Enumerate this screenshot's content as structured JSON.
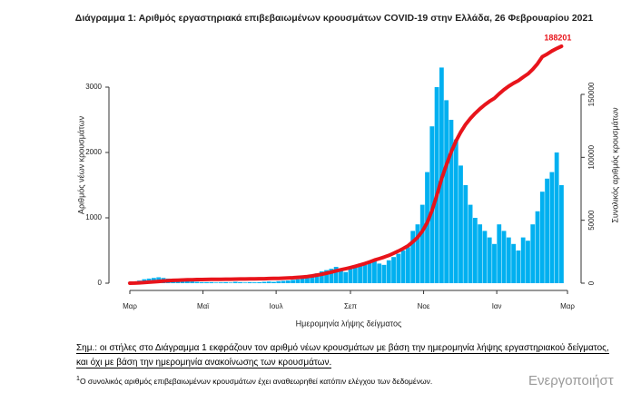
{
  "chart_data": {
    "type": "bar",
    "title": "Διάγραμμα 1: Αριθμός εργαστηριακά επιβεβαιωμένων κρουσμάτων COVID-19 στην Ελλάδα, 26 Φεβρουαρίου 2021",
    "x_label": "Ημερομηνία λήψης δείγματος",
    "y_label": "Αριθμός νέων κρουσμάτων",
    "y2_label": "Συνολικός αριθμός κρουσμάτων",
    "x": [
      0,
      4,
      8,
      12,
      16,
      20,
      24,
      28,
      32,
      36,
      40,
      44,
      48,
      52,
      56,
      60,
      64,
      68,
      72,
      76,
      80,
      84,
      88,
      92,
      96,
      100,
      104,
      108,
      112,
      116,
      120,
      124,
      128,
      132,
      136,
      140,
      144,
      148,
      152,
      156,
      160,
      164,
      168,
      172,
      176,
      180,
      184,
      188,
      192,
      196,
      200,
      204,
      208,
      212,
      216,
      220,
      224,
      228,
      232,
      236,
      240,
      244,
      248,
      252,
      256,
      260,
      264,
      268,
      272,
      276,
      280,
      284,
      288,
      292,
      296,
      300,
      304,
      308,
      312,
      316,
      320,
      324,
      328,
      332,
      336,
      340,
      344,
      348,
      352,
      356,
      360
    ],
    "xlim": [
      -5,
      368
    ],
    "xticks": [
      {
        "value": 0,
        "label": "Μαρ"
      },
      {
        "value": 61,
        "label": "Μαϊ"
      },
      {
        "value": 122,
        "label": "Ιουλ"
      },
      {
        "value": 184,
        "label": "Σεπ"
      },
      {
        "value": 245,
        "label": "Νοε"
      },
      {
        "value": 306,
        "label": "Ιαν"
      },
      {
        "value": 365,
        "label": "Μαρ"
      }
    ],
    "ylim": [
      0,
      3778
    ],
    "yticks": [
      0,
      1000,
      2000,
      3000
    ],
    "y2lim": [
      0,
      196154
    ],
    "y2ticks": [
      0,
      50000,
      100000,
      150000
    ],
    "series": [
      {
        "type": "bar",
        "color": "#00b0f0",
        "values": [
          5,
          20,
          40,
          60,
          70,
          80,
          90,
          80,
          70,
          60,
          50,
          40,
          30,
          25,
          20,
          15,
          15,
          15,
          10,
          12,
          15,
          10,
          20,
          15,
          10,
          15,
          12,
          15,
          20,
          25,
          20,
          30,
          35,
          40,
          50,
          60,
          70,
          90,
          110,
          150,
          180,
          200,
          220,
          250,
          200,
          170,
          220,
          250,
          300,
          280,
          320,
          350,
          300,
          280,
          350,
          400,
          450,
          500,
          550,
          800,
          900,
          1200,
          1700,
          2400,
          3000,
          3300,
          2800,
          2500,
          2200,
          1800,
          1500,
          1200,
          1000,
          900,
          800,
          700,
          600,
          900,
          800,
          700,
          600,
          500,
          700,
          650,
          900,
          1100,
          1400,
          1600,
          1700,
          2000,
          1500
        ]
      },
      {
        "type": "line",
        "axis": "y2",
        "color": "#e8141b",
        "end_label": "188201",
        "values": [
          7,
          90,
          300,
          500,
          800,
          1100,
          1400,
          1700,
          2000,
          2200,
          2400,
          2550,
          2650,
          2750,
          2850,
          2900,
          2950,
          3000,
          3050,
          3100,
          3150,
          3200,
          3250,
          3300,
          3350,
          3400,
          3450,
          3500,
          3550,
          3650,
          3750,
          3850,
          4000,
          4150,
          4350,
          4600,
          4900,
          5300,
          5800,
          6400,
          7100,
          7900,
          8800,
          9800,
          10700,
          11500,
          12400,
          13400,
          14500,
          15600,
          16900,
          18300,
          19500,
          20700,
          22100,
          23700,
          25500,
          27500,
          29700,
          32900,
          36500,
          41300,
          48100,
          57700,
          69700,
          82900,
          94100,
          104100,
          112900,
          120100,
          126100,
          130900,
          134900,
          138500,
          141700,
          144500,
          146900,
          150500,
          153700,
          156500,
          158900,
          160900,
          163700,
          166300,
          169900,
          174300,
          179900,
          182000,
          184500,
          186500,
          188201
        ]
      }
    ]
  },
  "note": "Σημ.: οι στήλες στο Διάγραμμα 1 εκφράζουν τον αριθμό νέων κρουσμάτων με βάση την ημερομηνία λήψης εργαστηριακού δείγματος, και όχι με βάση την ημερομηνία ανακοίνωσης των κρουσμάτων.",
  "footnote": {
    "mark": "1",
    "text": "Ο συνολικός αριθμός επιβεβαιωμένων κρουσμάτων έχει αναθεωρηθεί κατόπιν ελέγχου των δεδομένων."
  },
  "watermark": "Ενεργοποιήστ"
}
